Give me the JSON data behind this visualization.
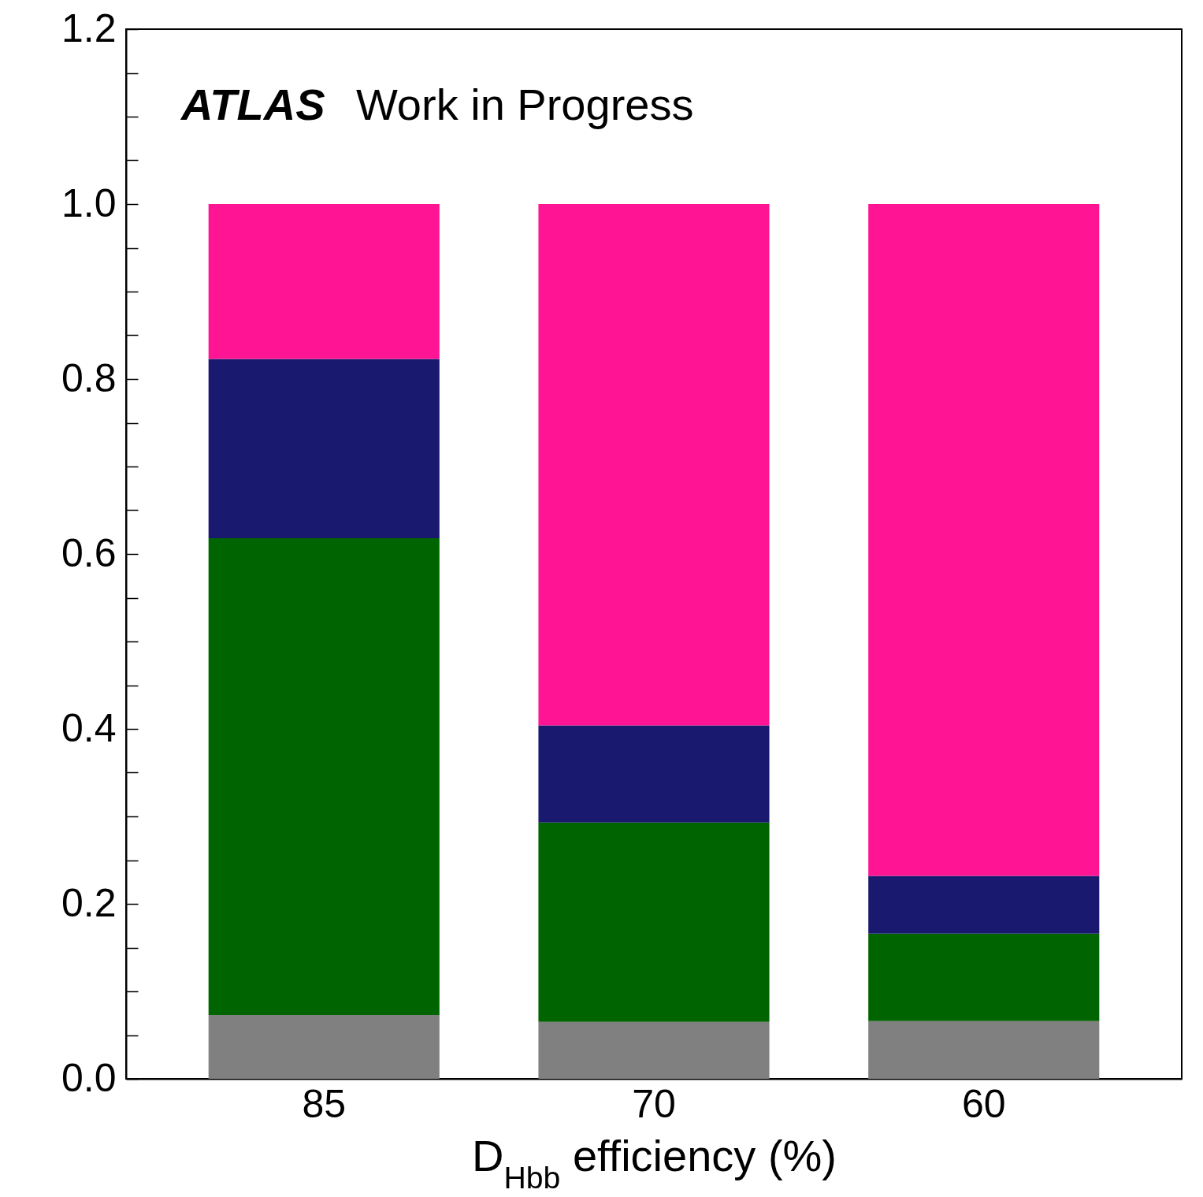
{
  "chart_data": {
    "type": "bar",
    "stacked": true,
    "xlabel": "D$_{Hbb}$ efficiency (%)",
    "annotations": [
      "ATLAS",
      "Work in Progress"
    ],
    "categories": [
      "85",
      "70",
      "60"
    ],
    "series": [
      {
        "color": "#808080",
        "values": [
          0.073,
          0.065,
          0.066
        ]
      },
      {
        "color": "#006400",
        "values": [
          0.545,
          0.228,
          0.1
        ]
      },
      {
        "color": "#191970",
        "values": [
          0.205,
          0.111,
          0.066
        ]
      },
      {
        "color": "#ff1493",
        "values": [
          0.177,
          0.596,
          0.768
        ]
      }
    ],
    "ylim": [
      0,
      1.2
    ],
    "yticks": [
      {
        "value": 0,
        "label": "0.0"
      },
      {
        "value": 0.05,
        "label": null
      },
      {
        "value": 0.1,
        "label": null
      },
      {
        "value": 0.15,
        "label": null
      },
      {
        "value": 0.2,
        "label": "0.2"
      },
      {
        "value": 0.25,
        "label": null
      },
      {
        "value": 0.3,
        "label": null
      },
      {
        "value": 0.35,
        "label": null
      },
      {
        "value": 0.4,
        "label": "0.4"
      },
      {
        "value": 0.45,
        "label": null
      },
      {
        "value": 0.5,
        "label": null
      },
      {
        "value": 0.55,
        "label": null
      },
      {
        "value": 0.6,
        "label": "0.6"
      },
      {
        "value": 0.65,
        "label": null
      },
      {
        "value": 0.7,
        "label": null
      },
      {
        "value": 0.75,
        "label": null
      },
      {
        "value": 0.8,
        "label": "0.8"
      },
      {
        "value": 0.85,
        "label": null
      },
      {
        "value": 0.9,
        "label": null
      },
      {
        "value": 0.95,
        "label": null
      },
      {
        "value": 1,
        "label": "1.0"
      },
      {
        "value": 1.05,
        "label": null
      },
      {
        "value": 1.1,
        "label": null
      },
      {
        "value": 1.15,
        "label": null
      },
      {
        "value": 1.2,
        "label": "1.2"
      }
    ],
    "grid": false,
    "legend": false
  }
}
